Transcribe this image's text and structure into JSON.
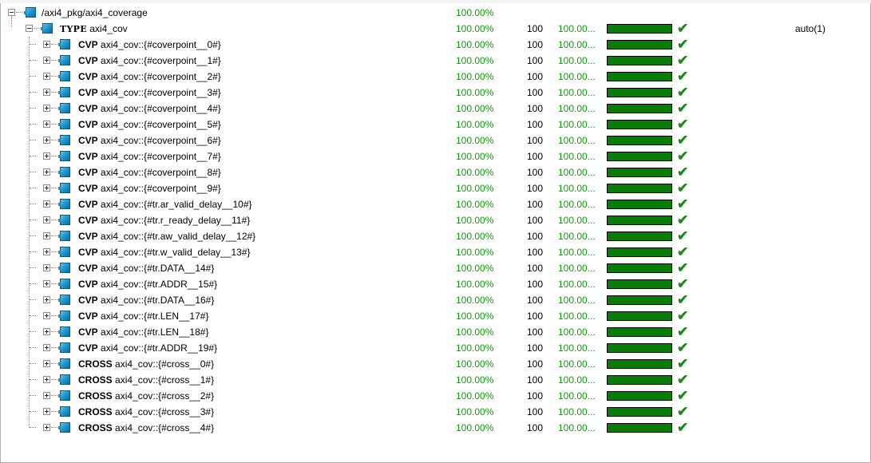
{
  "tree": {
    "root": {
      "label": "/axi4_pkg/axi4_coverage",
      "coverage": "100.00%"
    },
    "type": {
      "keyword": "TYPE",
      "label": "axi4_cov",
      "coverage": "100.00%",
      "goal": "100",
      "goal_pct": "100.00...",
      "bar_fraction": 1.0,
      "extra": "auto(1)"
    },
    "items": [
      {
        "keyword": "CVP",
        "label": "axi4_cov::{#coverpoint__0#}",
        "coverage": "100.00%",
        "goal": "100",
        "goal_pct": "100.00...",
        "bar_fraction": 1.0
      },
      {
        "keyword": "CVP",
        "label": "axi4_cov::{#coverpoint__1#}",
        "coverage": "100.00%",
        "goal": "100",
        "goal_pct": "100.00...",
        "bar_fraction": 1.0
      },
      {
        "keyword": "CVP",
        "label": "axi4_cov::{#coverpoint__2#}",
        "coverage": "100.00%",
        "goal": "100",
        "goal_pct": "100.00...",
        "bar_fraction": 1.0
      },
      {
        "keyword": "CVP",
        "label": "axi4_cov::{#coverpoint__3#}",
        "coverage": "100.00%",
        "goal": "100",
        "goal_pct": "100.00...",
        "bar_fraction": 1.0
      },
      {
        "keyword": "CVP",
        "label": "axi4_cov::{#coverpoint__4#}",
        "coverage": "100.00%",
        "goal": "100",
        "goal_pct": "100.00...",
        "bar_fraction": 1.0
      },
      {
        "keyword": "CVP",
        "label": "axi4_cov::{#coverpoint__5#}",
        "coverage": "100.00%",
        "goal": "100",
        "goal_pct": "100.00...",
        "bar_fraction": 1.0
      },
      {
        "keyword": "CVP",
        "label": "axi4_cov::{#coverpoint__6#}",
        "coverage": "100.00%",
        "goal": "100",
        "goal_pct": "100.00...",
        "bar_fraction": 1.0
      },
      {
        "keyword": "CVP",
        "label": "axi4_cov::{#coverpoint__7#}",
        "coverage": "100.00%",
        "goal": "100",
        "goal_pct": "100.00...",
        "bar_fraction": 1.0
      },
      {
        "keyword": "CVP",
        "label": "axi4_cov::{#coverpoint__8#}",
        "coverage": "100.00%",
        "goal": "100",
        "goal_pct": "100.00...",
        "bar_fraction": 1.0
      },
      {
        "keyword": "CVP",
        "label": "axi4_cov::{#coverpoint__9#}",
        "coverage": "100.00%",
        "goal": "100",
        "goal_pct": "100.00...",
        "bar_fraction": 1.0
      },
      {
        "keyword": "CVP",
        "label": "axi4_cov::{#tr.ar_valid_delay__10#}",
        "coverage": "100.00%",
        "goal": "100",
        "goal_pct": "100.00...",
        "bar_fraction": 1.0
      },
      {
        "keyword": "CVP",
        "label": "axi4_cov::{#tr.r_ready_delay__11#}",
        "coverage": "100.00%",
        "goal": "100",
        "goal_pct": "100.00...",
        "bar_fraction": 1.0
      },
      {
        "keyword": "CVP",
        "label": "axi4_cov::{#tr.aw_valid_delay__12#}",
        "coverage": "100.00%",
        "goal": "100",
        "goal_pct": "100.00...",
        "bar_fraction": 1.0
      },
      {
        "keyword": "CVP",
        "label": "axi4_cov::{#tr.w_valid_delay__13#}",
        "coverage": "100.00%",
        "goal": "100",
        "goal_pct": "100.00...",
        "bar_fraction": 1.0
      },
      {
        "keyword": "CVP",
        "label": "axi4_cov::{#tr.DATA__14#}",
        "coverage": "100.00%",
        "goal": "100",
        "goal_pct": "100.00...",
        "bar_fraction": 1.0
      },
      {
        "keyword": "CVP",
        "label": "axi4_cov::{#tr.ADDR__15#}",
        "coverage": "100.00%",
        "goal": "100",
        "goal_pct": "100.00...",
        "bar_fraction": 1.0
      },
      {
        "keyword": "CVP",
        "label": "axi4_cov::{#tr.DATA__16#}",
        "coverage": "100.00%",
        "goal": "100",
        "goal_pct": "100.00...",
        "bar_fraction": 1.0
      },
      {
        "keyword": "CVP",
        "label": "axi4_cov::{#tr.LEN__17#}",
        "coverage": "100.00%",
        "goal": "100",
        "goal_pct": "100.00...",
        "bar_fraction": 1.0
      },
      {
        "keyword": "CVP",
        "label": "axi4_cov::{#tr.LEN__18#}",
        "coverage": "100.00%",
        "goal": "100",
        "goal_pct": "100.00...",
        "bar_fraction": 1.0
      },
      {
        "keyword": "CVP",
        "label": "axi4_cov::{#tr.ADDR__19#}",
        "coverage": "100.00%",
        "goal": "100",
        "goal_pct": "100.00...",
        "bar_fraction": 1.0
      },
      {
        "keyword": "CROSS",
        "label": "axi4_cov::{#cross__0#}",
        "coverage": "100.00%",
        "goal": "100",
        "goal_pct": "100.00...",
        "bar_fraction": 1.0
      },
      {
        "keyword": "CROSS",
        "label": "axi4_cov::{#cross__1#}",
        "coverage": "100.00%",
        "goal": "100",
        "goal_pct": "100.00...",
        "bar_fraction": 1.0
      },
      {
        "keyword": "CROSS",
        "label": "axi4_cov::{#cross__2#}",
        "coverage": "100.00%",
        "goal": "100",
        "goal_pct": "100.00...",
        "bar_fraction": 1.0
      },
      {
        "keyword": "CROSS",
        "label": "axi4_cov::{#cross__3#}",
        "coverage": "100.00%",
        "goal": "100",
        "goal_pct": "100.00...",
        "bar_fraction": 1.0
      },
      {
        "keyword": "CROSS",
        "label": "axi4_cov::{#cross__4#}",
        "coverage": "100.00%",
        "goal": "100",
        "goal_pct": "100.00...",
        "bar_fraction": 1.0
      }
    ]
  },
  "icons": {
    "row_icon": "covergroup-icon",
    "status_icon": "checkmark-icon"
  },
  "colors": {
    "coverage_text": "#119911",
    "bar_fill": "#0a7a0a",
    "check": "#1f8a1f"
  }
}
